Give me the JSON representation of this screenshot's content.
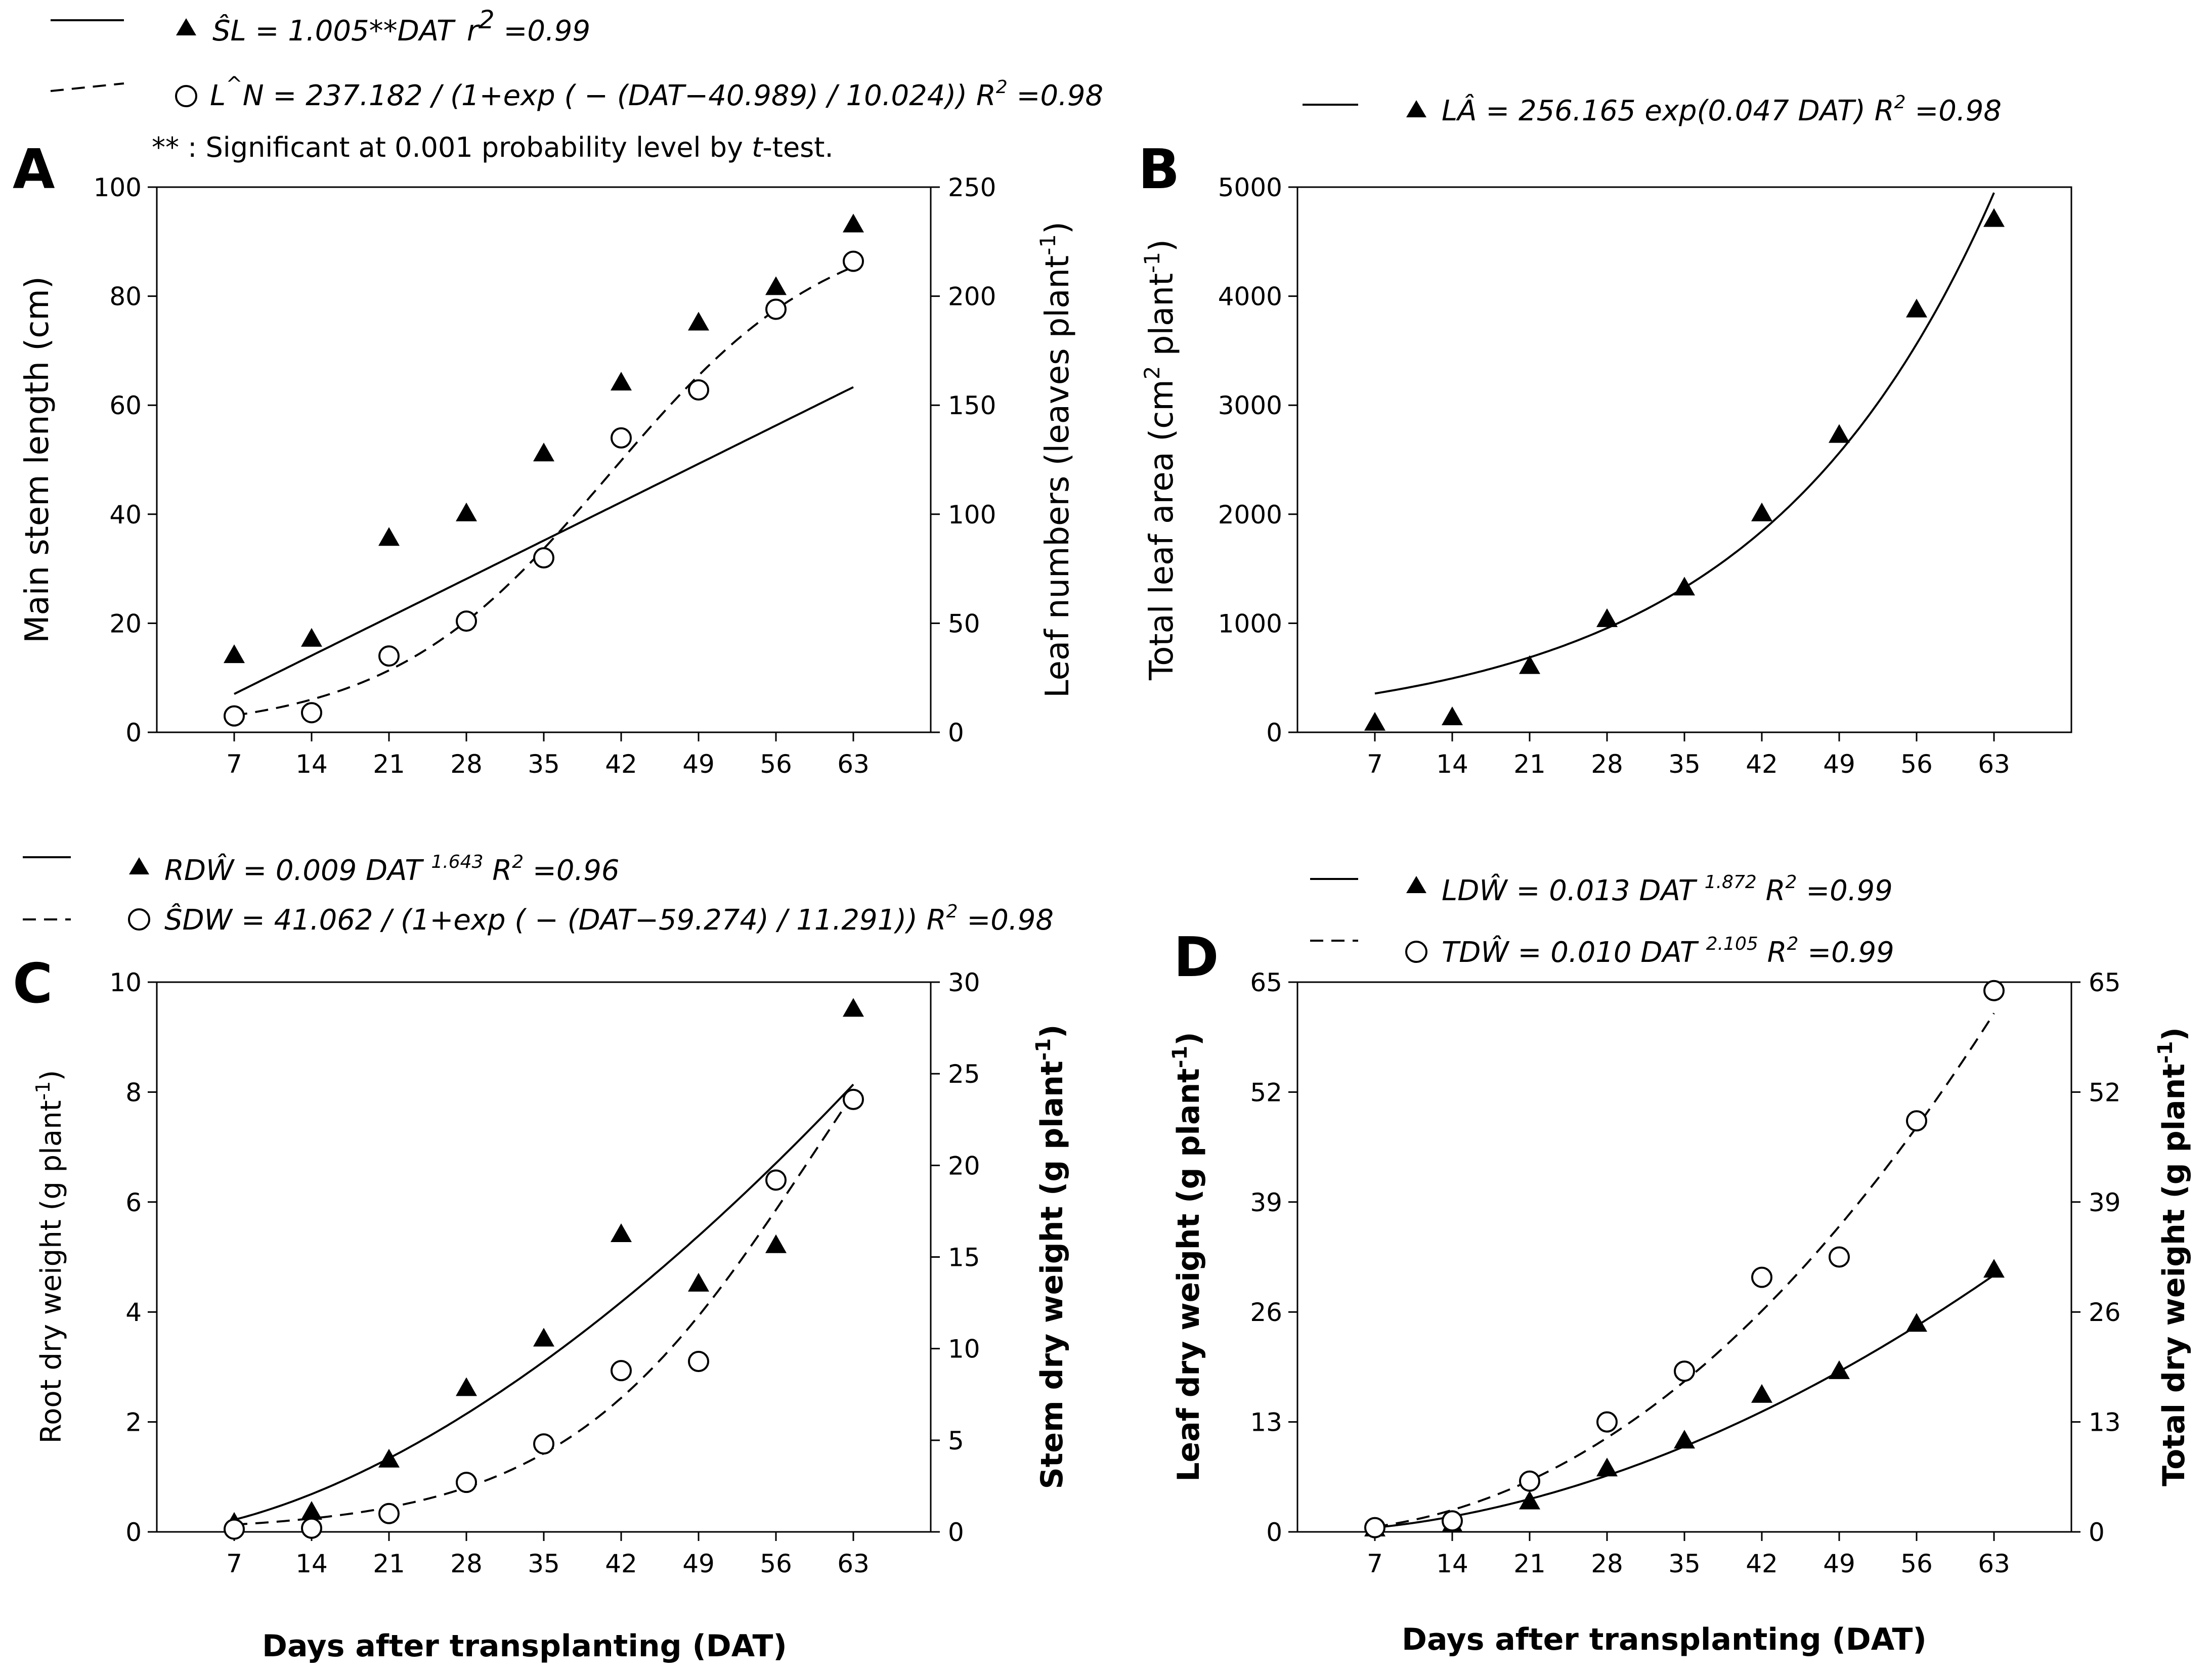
{
  "figure": {
    "xlabel": "Days after transplanting (DAT)"
  },
  "chart_data": [
    {
      "id": "A",
      "type": "scatter",
      "panel_label": "A",
      "x": [
        7,
        14,
        21,
        28,
        35,
        42,
        49,
        56,
        63
      ],
      "xlim": [
        0,
        70
      ],
      "ylabel_left": "Main stem length (cm)",
      "ylabel_right": "Leaf numbers (leaves plant⁻¹)",
      "ylim_left": [
        0,
        100
      ],
      "ylim_right": [
        0,
        250
      ],
      "yticks_left": [
        0,
        20,
        40,
        60,
        80,
        100
      ],
      "yticks_right": [
        0,
        50,
        100,
        150,
        200,
        250
      ],
      "series": [
        {
          "name": "Main stem length",
          "marker": "triangle",
          "axis": "left",
          "values": [
            14,
            17,
            35.5,
            40,
            51,
            64,
            75,
            81.5,
            93
          ],
          "fit": {
            "kind": "linear_origin",
            "a": 1.005
          },
          "line": "solid",
          "equation": "ŜL = 1.005**DAT   r² =0.99"
        },
        {
          "name": "Leaf numbers",
          "marker": "circle",
          "axis": "right",
          "values": [
            7.5,
            9,
            35,
            51,
            80,
            135,
            157,
            194,
            216
          ],
          "fit": {
            "kind": "logistic",
            "a": 237.182,
            "x0": 40.989,
            "b": 10.024
          },
          "line": "dashed",
          "equation": "L^N = 237.182 / (1+exp ( − (DAT−40.989) / 10.024)) R² =0.98"
        }
      ],
      "note": "** : Significant at 0.001 probability level by t-test."
    },
    {
      "id": "B",
      "type": "scatter",
      "panel_label": "B",
      "x": [
        7,
        14,
        21,
        28,
        35,
        42,
        49,
        56,
        63
      ],
      "xlim": [
        0,
        70
      ],
      "ylabel_left": "Total leaf area (cm² plant⁻¹)",
      "ylim_left": [
        0,
        5000
      ],
      "yticks_left": [
        0,
        1000,
        2000,
        3000,
        4000,
        5000
      ],
      "series": [
        {
          "name": "Total leaf area",
          "marker": "triangle",
          "axis": "left",
          "values": [
            80,
            130,
            600,
            1030,
            1320,
            2000,
            2720,
            3870,
            4700
          ],
          "fit": {
            "kind": "exponential",
            "a": 256.165,
            "b": 0.047
          },
          "line": "solid",
          "equation": "LÂ = 256.165 exp(0.047 DAT) R² =0.98"
        }
      ]
    },
    {
      "id": "C",
      "type": "scatter",
      "panel_label": "C",
      "x": [
        7,
        14,
        21,
        28,
        35,
        42,
        49,
        56,
        63
      ],
      "xlim": [
        0,
        70
      ],
      "ylabel_left": "Root dry weight (g plant⁻¹)",
      "ylabel_right": "Stem dry weight (g plant⁻¹)",
      "ylim_left": [
        0,
        10
      ],
      "ylim_right": [
        0,
        30
      ],
      "yticks_left": [
        0,
        2,
        4,
        6,
        8,
        10
      ],
      "yticks_right": [
        0,
        5,
        10,
        15,
        20,
        25,
        30
      ],
      "series": [
        {
          "name": "Root dry weight",
          "marker": "triangle",
          "axis": "left",
          "values": [
            0.15,
            0.35,
            1.3,
            2.6,
            3.5,
            5.4,
            4.5,
            5.2,
            9.5
          ],
          "fit": {
            "kind": "power",
            "a": 0.009,
            "b": 1.643
          },
          "line": "solid",
          "equation": "RDŴ = 0.009 DAT ^1.643 R² =0.96"
        },
        {
          "name": "Stem dry weight",
          "marker": "circle",
          "axis": "right",
          "values": [
            0.15,
            0.2,
            1.0,
            2.7,
            4.8,
            8.8,
            9.3,
            19.2,
            23.6
          ],
          "fit": {
            "kind": "logistic",
            "a": 41.062,
            "x0": 59.274,
            "b": 11.291
          },
          "line": "dashed",
          "equation": "ŜDW = 41.062 / (1+exp ( − (DAT−59.274) / 11.291)) R² =0.98"
        }
      ]
    },
    {
      "id": "D",
      "type": "scatter",
      "panel_label": "D",
      "x": [
        7,
        14,
        21,
        28,
        35,
        42,
        49,
        56,
        63
      ],
      "xlim": [
        0,
        70
      ],
      "ylabel_left": "Leaf dry weight (g plant⁻¹)",
      "ylabel_right": "Total dry weight (g plant⁻¹)",
      "ylim_left": [
        0,
        65
      ],
      "ylim_right": [
        0,
        65
      ],
      "yticks_left": [
        0,
        13,
        26,
        39,
        52,
        65
      ],
      "yticks_right": [
        0,
        13,
        26,
        39,
        52,
        65
      ],
      "series": [
        {
          "name": "Leaf dry weight",
          "marker": "triangle",
          "axis": "left",
          "values": [
            0.3,
            0.8,
            3.5,
            7.4,
            10.7,
            16.1,
            18.9,
            24.5,
            30.9
          ],
          "fit": {
            "kind": "power",
            "a": 0.013,
            "b": 1.872
          },
          "line": "solid",
          "equation": "LDŴ = 0.013 DAT ^1.872   R² =0.99"
        },
        {
          "name": "Total dry weight",
          "marker": "circle",
          "axis": "right",
          "values": [
            0.5,
            1.3,
            6.0,
            13.0,
            19.0,
            30.1,
            32.5,
            48.6,
            64.0
          ],
          "fit": {
            "kind": "power",
            "a": 0.01,
            "b": 2.105
          },
          "line": "dashed",
          "equation": "TDŴ = 0.010 DAT ^2.105    R² =0.99"
        }
      ]
    }
  ],
  "legend_text": {
    "A1": [
      "ŜL = 1.005**DAT",
      "r",
      "2",
      " =0.99"
    ],
    "A2": [
      "L",
      "^",
      "N = 237.182 / (1+exp ( − (DAT−40.989) / 10.024)) R",
      "2",
      " =0.98"
    ],
    "B1": [
      "LÂ = 256.165 exp(0.047 DAT) R",
      "2",
      " =0.98"
    ],
    "C1": [
      "RDŴ = 0.009 DAT ",
      "1.643",
      " R",
      "2",
      " =0.96"
    ],
    "C2": [
      "ŜDW = 41.062 / (1+exp ( − (DAT−59.274) / 11.291)) R",
      "2",
      " =0.98"
    ],
    "D1": [
      "LDŴ = 0.013 DAT ",
      "1.872",
      "  R",
      "2",
      " =0.99"
    ],
    "D2": [
      "TDŴ = 0.010 DAT ",
      "2.105",
      "   R",
      "2",
      " =0.99"
    ],
    "noteA": [
      "** : Significant at 0.001 probability level by ",
      "t",
      "-test."
    ]
  },
  "axis_label_parts": {
    "A_left": "Main stem length (cm)",
    "A_right": [
      "Leaf numbers (leaves plant",
      "-1",
      ")"
    ],
    "B_left": [
      "Total leaf area (cm",
      "2",
      " plant",
      "-1",
      ")"
    ],
    "C_left": [
      "Root dry weight (g plant",
      "-1",
      ")"
    ],
    "C_right": [
      "Stem dry weight (g plant",
      "-1",
      ")"
    ],
    "D_left": [
      "Leaf dry weight (g plant",
      "-1",
      ")"
    ],
    "D_right": [
      "Total dry weight (g plant",
      "-1",
      ")"
    ]
  }
}
